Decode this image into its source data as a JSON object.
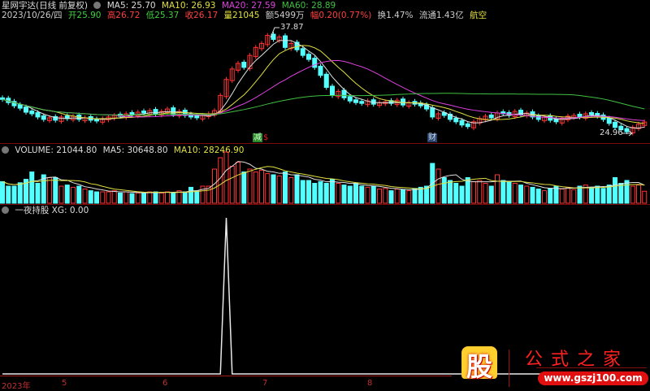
{
  "header": {
    "title": "星网宇达(日线 前复权)",
    "ma5": "MA5: 25.70",
    "ma10": "MA10: 26.93",
    "ma20": "MA20: 27.59",
    "ma60": "MA60: 28.89",
    "date": "2023/10/26/四",
    "open": "开25.90",
    "high": "高26.72",
    "low": "低25.37",
    "close": "收26.17",
    "vol": "量21045",
    "amount": "额5499万",
    "change": "幅0.20(0.77%)",
    "turnover": "换1.47%",
    "float": "流通1.43亿",
    "sector": "航空"
  },
  "main_chart": {
    "high_label": "37.87",
    "low_label": "24.96",
    "markers": [
      {
        "text": "减",
        "color": "#2a8a2a"
      },
      {
        "text": "$",
        "color": "#e02020"
      },
      {
        "text": "财",
        "color": "#3060a0"
      }
    ],
    "colors": {
      "up": "#ff3232",
      "down": "#54ffff",
      "ma5": "#e0e0e0",
      "ma10": "#e0e040",
      "ma20": "#e040e0",
      "ma60": "#40c040"
    },
    "closes": [
      29.0,
      28.6,
      28.2,
      27.9,
      27.4,
      27.2,
      26.8,
      26.5,
      26.7,
      26.4,
      26.8,
      26.6,
      26.9,
      26.5,
      26.7,
      26.4,
      26.3,
      26.6,
      26.8,
      27.0,
      26.9,
      27.2,
      27.1,
      27.4,
      27.3,
      27.6,
      27.2,
      27.5,
      27.8,
      27.1,
      27.5,
      27.0,
      26.8,
      26.7,
      27.0,
      27.2,
      27.6,
      29.5,
      31.5,
      32.8,
      33.5,
      33.0,
      34.5,
      35.5,
      36.0,
      37.0,
      36.5,
      36.8,
      35.5,
      36.0,
      35.2,
      34.5,
      34.0,
      33.0,
      32.0,
      30.5,
      29.5,
      30.0,
      29.2,
      28.8,
      28.6,
      28.5,
      28.8,
      28.4,
      28.6,
      28.7,
      28.5,
      28.9,
      28.3,
      28.6,
      28.4,
      28.2,
      27.8,
      26.8,
      27.2,
      27.0,
      26.5,
      26.2,
      25.8,
      25.6,
      26.2,
      26.6,
      26.9,
      26.7,
      27.3,
      27.2,
      27.0,
      27.5,
      27.1,
      27.3,
      26.8,
      26.5,
      26.8,
      26.4,
      26.2,
      26.6,
      26.9,
      27.0,
      26.8,
      27.2,
      27.1,
      26.9,
      26.5,
      26.0,
      25.5,
      25.2,
      24.96,
      25.5,
      25.9,
      26.17
    ]
  },
  "volume_panel": {
    "label": "VOLUME: 21044.80",
    "ma5": "MA5: 30648.80",
    "ma10": "MA10: 28246.90",
    "values": [
      38000,
      30000,
      30000,
      36000,
      42000,
      55000,
      35000,
      50000,
      45000,
      45000,
      30000,
      32000,
      28000,
      30000,
      25000,
      22000,
      20000,
      20000,
      20000,
      22000,
      18000,
      20000,
      17000,
      18000,
      18000,
      20000,
      20000,
      18000,
      20000,
      18000,
      22000,
      20000,
      28000,
      22000,
      30000,
      30000,
      60000,
      80000,
      90000,
      65000,
      72000,
      55000,
      60000,
      55000,
      58000,
      52000,
      50000,
      48000,
      55000,
      45000,
      50000,
      40000,
      40000,
      35000,
      38000,
      35000,
      42000,
      35000,
      32000,
      30000,
      35000,
      30000,
      28000,
      30000,
      25000,
      26000,
      22000,
      25000,
      24000,
      22000,
      26000,
      28000,
      30000,
      70000,
      60000,
      45000,
      40000,
      35000,
      30000,
      45000,
      38000,
      40000,
      35000,
      30000,
      50000,
      40000,
      38000,
      35000,
      32000,
      30000,
      28000,
      25000,
      22000,
      26000,
      30000,
      25000,
      28000,
      24000,
      30000,
      32000,
      28000,
      30000,
      26000,
      32000,
      45000,
      35000,
      40000,
      30000,
      32000,
      21045
    ],
    "ymax": 100000
  },
  "indicator_panel": {
    "label": "一夜持股 XG: 0.00",
    "values_nonzero": [
      {
        "index": 38,
        "value": 1
      }
    ]
  },
  "x_axis": {
    "labels": [
      "2023年",
      "5",
      "6",
      "7",
      "8"
    ]
  },
  "watermark": {
    "logo": "股",
    "name": "公式之家",
    "url": "www.gszj100.com"
  }
}
